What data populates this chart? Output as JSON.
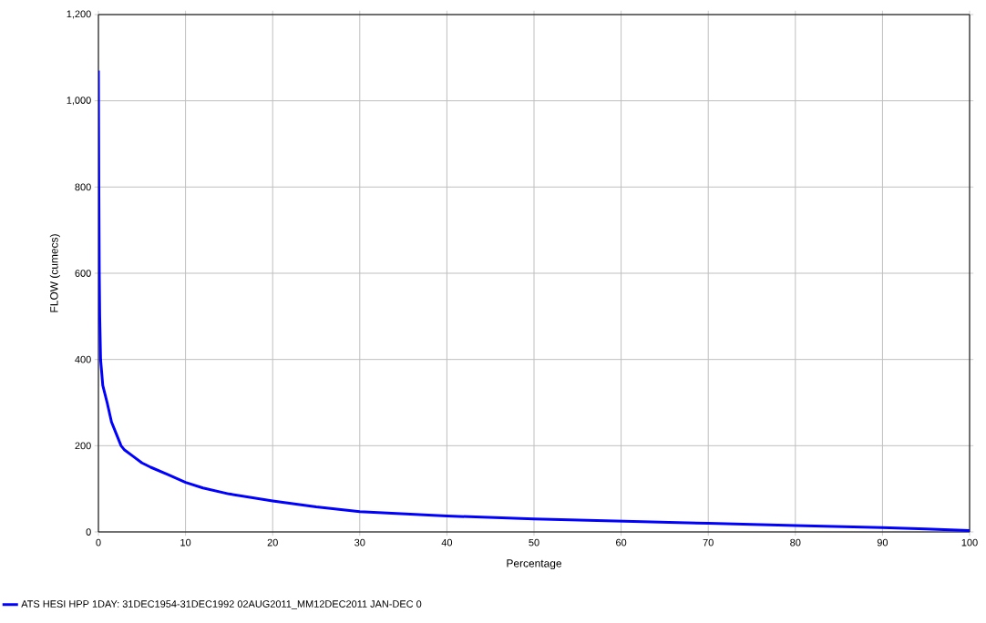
{
  "chart_data": {
    "type": "line",
    "xlabel": "Percentage",
    "ylabel": "FLOW (cumecs)",
    "xlim": [
      0,
      100
    ],
    "ylim": [
      0,
      1200
    ],
    "xticks": [
      0,
      10,
      20,
      30,
      40,
      50,
      60,
      70,
      80,
      90,
      100
    ],
    "yticks": [
      0,
      200,
      400,
      600,
      800,
      {
        "value": 1000,
        "label": "1,000"
      },
      {
        "value": 1200,
        "label": "1,200"
      }
    ],
    "grid": true,
    "legend": "bottom",
    "marker": "none",
    "line_style": "solid",
    "series": [
      {
        "name": "ATS HESI HPP 1DAY: 31DEC1954-31DEC1992 02AUG2011_MM12DEC2011 JAN-DEC  0",
        "color": "#0000ff",
        "x": [
          0,
          0.05,
          0.1,
          0.15,
          0.25,
          0.5,
          1,
          1.5,
          2,
          2.6,
          3,
          4,
          5,
          6,
          8,
          10,
          12,
          15,
          20,
          25,
          30,
          35,
          40,
          50,
          60,
          70,
          80,
          90,
          95,
          100
        ],
        "values": [
          1070,
          800,
          600,
          500,
          400,
          340,
          300,
          255,
          230,
          200,
          190,
          175,
          160,
          150,
          133,
          115,
          102,
          88,
          72,
          58,
          47,
          42,
          37,
          30,
          25,
          20,
          15,
          10,
          7,
          3
        ]
      }
    ]
  }
}
